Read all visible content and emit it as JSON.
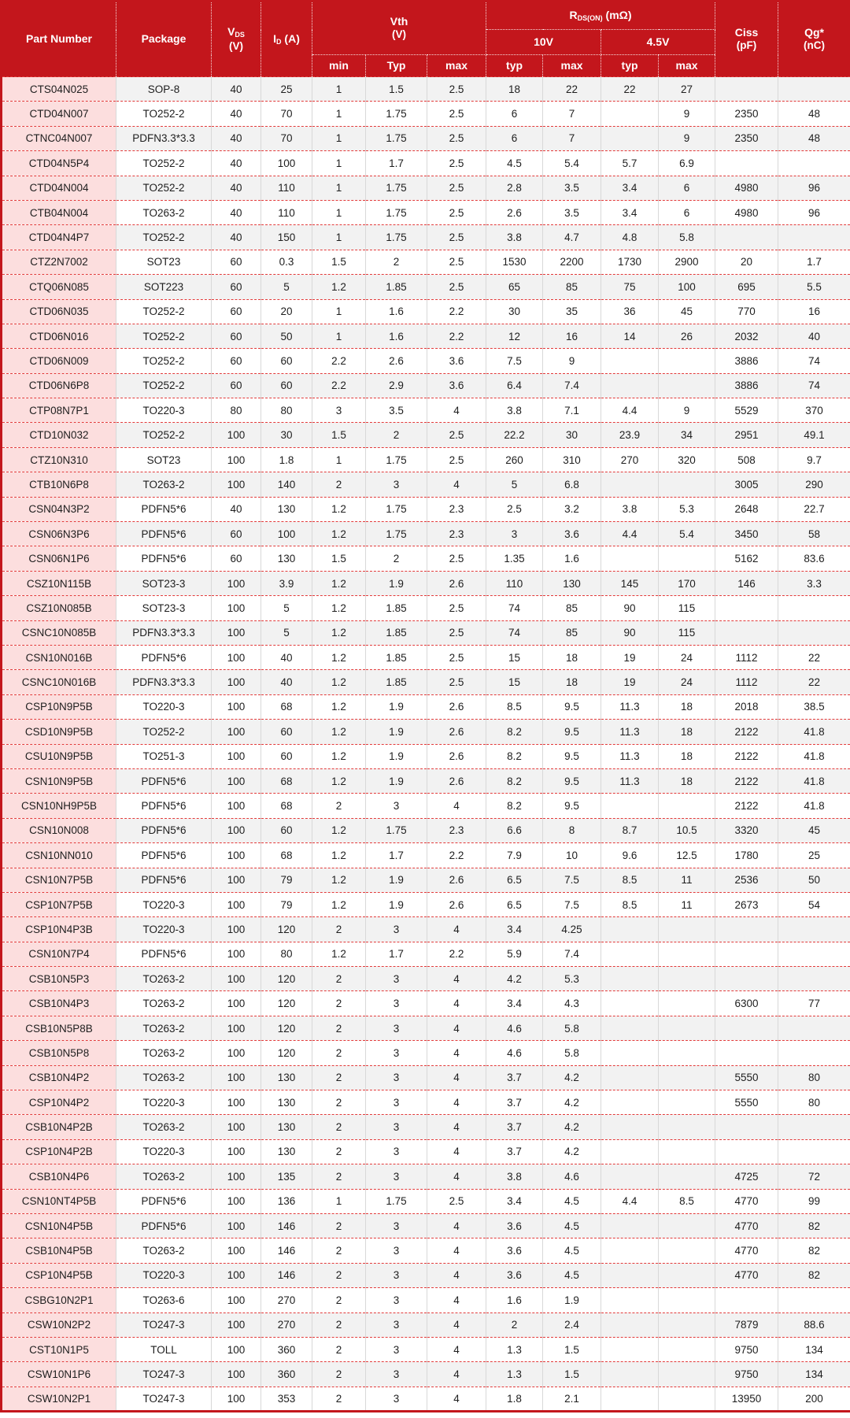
{
  "table": {
    "header": {
      "part_number": "Part Number",
      "package": "Package",
      "vds": {
        "main": "V",
        "sub": "DS",
        "unit": "(V)"
      },
      "id": {
        "main": "I",
        "sub": "D",
        "unit": "(A)"
      },
      "vth": {
        "title": "Vth",
        "unit": "(V)",
        "min": "min",
        "typ": "Typ",
        "max": "max"
      },
      "rdson": {
        "main": "R",
        "sub": "DS(ON)",
        "unit": "(mΩ)",
        "v10": "10V",
        "v45": "4.5V",
        "typ": "typ",
        "max": "max"
      },
      "ciss": {
        "title": "Ciss",
        "unit": "(pF)"
      },
      "qg": {
        "title": "Qg*",
        "unit": "(nC)"
      }
    },
    "rows": [
      [
        "CTS04N025",
        "SOP-8",
        "40",
        "25",
        "1",
        "1.5",
        "2.5",
        "18",
        "22",
        "22",
        "27",
        "",
        ""
      ],
      [
        "CTD04N007",
        "TO252-2",
        "40",
        "70",
        "1",
        "1.75",
        "2.5",
        "6",
        "7",
        "",
        "9",
        "2350",
        "48"
      ],
      [
        "CTNC04N007",
        "PDFN3.3*3.3",
        "40",
        "70",
        "1",
        "1.75",
        "2.5",
        "6",
        "7",
        "",
        "9",
        "2350",
        "48"
      ],
      [
        "CTD04N5P4",
        "TO252-2",
        "40",
        "100",
        "1",
        "1.7",
        "2.5",
        "4.5",
        "5.4",
        "5.7",
        "6.9",
        "",
        ""
      ],
      [
        "CTD04N004",
        "TO252-2",
        "40",
        "110",
        "1",
        "1.75",
        "2.5",
        "2.8",
        "3.5",
        "3.4",
        "6",
        "4980",
        "96"
      ],
      [
        "CTB04N004",
        "TO263-2",
        "40",
        "110",
        "1",
        "1.75",
        "2.5",
        "2.6",
        "3.5",
        "3.4",
        "6",
        "4980",
        "96"
      ],
      [
        "CTD04N4P7",
        "TO252-2",
        "40",
        "150",
        "1",
        "1.75",
        "2.5",
        "3.8",
        "4.7",
        "4.8",
        "5.8",
        "",
        ""
      ],
      [
        "CTZ2N7002",
        "SOT23",
        "60",
        "0.3",
        "1.5",
        "2",
        "2.5",
        "1530",
        "2200",
        "1730",
        "2900",
        "20",
        "1.7"
      ],
      [
        "CTQ06N085",
        "SOT223",
        "60",
        "5",
        "1.2",
        "1.85",
        "2.5",
        "65",
        "85",
        "75",
        "100",
        "695",
        "5.5"
      ],
      [
        "CTD06N035",
        "TO252-2",
        "60",
        "20",
        "1",
        "1.6",
        "2.2",
        "30",
        "35",
        "36",
        "45",
        "770",
        "16"
      ],
      [
        "CTD06N016",
        "TO252-2",
        "60",
        "50",
        "1",
        "1.6",
        "2.2",
        "12",
        "16",
        "14",
        "26",
        "2032",
        "40"
      ],
      [
        "CTD06N009",
        "TO252-2",
        "60",
        "60",
        "2.2",
        "2.6",
        "3.6",
        "7.5",
        "9",
        "",
        "",
        "3886",
        "74"
      ],
      [
        "CTD06N6P8",
        "TO252-2",
        "60",
        "60",
        "2.2",
        "2.9",
        "3.6",
        "6.4",
        "7.4",
        "",
        "",
        "3886",
        "74"
      ],
      [
        "CTP08N7P1",
        "TO220-3",
        "80",
        "80",
        "3",
        "3.5",
        "4",
        "3.8",
        "7.1",
        "4.4",
        "9",
        "5529",
        "370"
      ],
      [
        "CTD10N032",
        "TO252-2",
        "100",
        "30",
        "1.5",
        "2",
        "2.5",
        "22.2",
        "30",
        "23.9",
        "34",
        "2951",
        "49.1"
      ],
      [
        "CTZ10N310",
        "SOT23",
        "100",
        "1.8",
        "1",
        "1.75",
        "2.5",
        "260",
        "310",
        "270",
        "320",
        "508",
        "9.7"
      ],
      [
        "CTB10N6P8",
        "TO263-2",
        "100",
        "140",
        "2",
        "3",
        "4",
        "5",
        "6.8",
        "",
        "",
        "3005",
        "290"
      ],
      [
        "CSN04N3P2",
        "PDFN5*6",
        "40",
        "130",
        "1.2",
        "1.75",
        "2.3",
        "2.5",
        "3.2",
        "3.8",
        "5.3",
        "2648",
        "22.7"
      ],
      [
        "CSN06N3P6",
        "PDFN5*6",
        "60",
        "100",
        "1.2",
        "1.75",
        "2.3",
        "3",
        "3.6",
        "4.4",
        "5.4",
        "3450",
        "58"
      ],
      [
        "CSN06N1P6",
        "PDFN5*6",
        "60",
        "130",
        "1.5",
        "2",
        "2.5",
        "1.35",
        "1.6",
        "",
        "",
        "5162",
        "83.6"
      ],
      [
        "CSZ10N115B",
        "SOT23-3",
        "100",
        "3.9",
        "1.2",
        "1.9",
        "2.6",
        "110",
        "130",
        "145",
        "170",
        "146",
        "3.3"
      ],
      [
        "CSZ10N085B",
        "SOT23-3",
        "100",
        "5",
        "1.2",
        "1.85",
        "2.5",
        "74",
        "85",
        "90",
        "115",
        "",
        ""
      ],
      [
        "CSNC10N085B",
        "PDFN3.3*3.3",
        "100",
        "5",
        "1.2",
        "1.85",
        "2.5",
        "74",
        "85",
        "90",
        "115",
        "",
        ""
      ],
      [
        "CSN10N016B",
        "PDFN5*6",
        "100",
        "40",
        "1.2",
        "1.85",
        "2.5",
        "15",
        "18",
        "19",
        "24",
        "1112",
        "22"
      ],
      [
        "CSNC10N016B",
        "PDFN3.3*3.3",
        "100",
        "40",
        "1.2",
        "1.85",
        "2.5",
        "15",
        "18",
        "19",
        "24",
        "1112",
        "22"
      ],
      [
        "CSP10N9P5B",
        "TO220-3",
        "100",
        "68",
        "1.2",
        "1.9",
        "2.6",
        "8.5",
        "9.5",
        "11.3",
        "18",
        "2018",
        "38.5"
      ],
      [
        "CSD10N9P5B",
        "TO252-2",
        "100",
        "60",
        "1.2",
        "1.9",
        "2.6",
        "8.2",
        "9.5",
        "11.3",
        "18",
        "2122",
        "41.8"
      ],
      [
        "CSU10N9P5B",
        "TO251-3",
        "100",
        "60",
        "1.2",
        "1.9",
        "2.6",
        "8.2",
        "9.5",
        "11.3",
        "18",
        "2122",
        "41.8"
      ],
      [
        "CSN10N9P5B",
        "PDFN5*6",
        "100",
        "68",
        "1.2",
        "1.9",
        "2.6",
        "8.2",
        "9.5",
        "11.3",
        "18",
        "2122",
        "41.8"
      ],
      [
        "CSN10NH9P5B",
        "PDFN5*6",
        "100",
        "68",
        "2",
        "3",
        "4",
        "8.2",
        "9.5",
        "",
        "",
        "2122",
        "41.8"
      ],
      [
        "CSN10N008",
        "PDFN5*6",
        "100",
        "60",
        "1.2",
        "1.75",
        "2.3",
        "6.6",
        "8",
        "8.7",
        "10.5",
        "3320",
        "45"
      ],
      [
        "CSN10NN010",
        "PDFN5*6",
        "100",
        "68",
        "1.2",
        "1.7",
        "2.2",
        "7.9",
        "10",
        "9.6",
        "12.5",
        "1780",
        "25"
      ],
      [
        "CSN10N7P5B",
        "PDFN5*6",
        "100",
        "79",
        "1.2",
        "1.9",
        "2.6",
        "6.5",
        "7.5",
        "8.5",
        "11",
        "2536",
        "50"
      ],
      [
        "CSP10N7P5B",
        "TO220-3",
        "100",
        "79",
        "1.2",
        "1.9",
        "2.6",
        "6.5",
        "7.5",
        "8.5",
        "11",
        "2673",
        "54"
      ],
      [
        "CSP10N4P3B",
        "TO220-3",
        "100",
        "120",
        "2",
        "3",
        "4",
        "3.4",
        "4.25",
        "",
        "",
        "",
        ""
      ],
      [
        "CSN10N7P4",
        "PDFN5*6",
        "100",
        "80",
        "1.2",
        "1.7",
        "2.2",
        "5.9",
        "7.4",
        "",
        "",
        "",
        ""
      ],
      [
        "CSB10N5P3",
        "TO263-2",
        "100",
        "120",
        "2",
        "3",
        "4",
        "4.2",
        "5.3",
        "",
        "",
        "",
        ""
      ],
      [
        "CSB10N4P3",
        "TO263-2",
        "100",
        "120",
        "2",
        "3",
        "4",
        "3.4",
        "4.3",
        "",
        "",
        "6300",
        "77"
      ],
      [
        "CSB10N5P8B",
        "TO263-2",
        "100",
        "120",
        "2",
        "3",
        "4",
        "4.6",
        "5.8",
        "",
        "",
        "",
        ""
      ],
      [
        "CSB10N5P8",
        "TO263-2",
        "100",
        "120",
        "2",
        "3",
        "4",
        "4.6",
        "5.8",
        "",
        "",
        "",
        ""
      ],
      [
        "CSB10N4P2",
        "TO263-2",
        "100",
        "130",
        "2",
        "3",
        "4",
        "3.7",
        "4.2",
        "",
        "",
        "5550",
        "80"
      ],
      [
        "CSP10N4P2",
        "TO220-3",
        "100",
        "130",
        "2",
        "3",
        "4",
        "3.7",
        "4.2",
        "",
        "",
        "5550",
        "80"
      ],
      [
        "CSB10N4P2B",
        "TO263-2",
        "100",
        "130",
        "2",
        "3",
        "4",
        "3.7",
        "4.2",
        "",
        "",
        "",
        ""
      ],
      [
        "CSP10N4P2B",
        "TO220-3",
        "100",
        "130",
        "2",
        "3",
        "4",
        "3.7",
        "4.2",
        "",
        "",
        "",
        ""
      ],
      [
        "CSB10N4P6",
        "TO263-2",
        "100",
        "135",
        "2",
        "3",
        "4",
        "3.8",
        "4.6",
        "",
        "",
        "4725",
        "72"
      ],
      [
        "CSN10NT4P5B",
        "PDFN5*6",
        "100",
        "136",
        "1",
        "1.75",
        "2.5",
        "3.4",
        "4.5",
        "4.4",
        "8.5",
        "4770",
        "99"
      ],
      [
        "CSN10N4P5B",
        "PDFN5*6",
        "100",
        "146",
        "2",
        "3",
        "4",
        "3.6",
        "4.5",
        "",
        "",
        "4770",
        "82"
      ],
      [
        "CSB10N4P5B",
        "TO263-2",
        "100",
        "146",
        "2",
        "3",
        "4",
        "3.6",
        "4.5",
        "",
        "",
        "4770",
        "82"
      ],
      [
        "CSP10N4P5B",
        "TO220-3",
        "100",
        "146",
        "2",
        "3",
        "4",
        "3.6",
        "4.5",
        "",
        "",
        "4770",
        "82"
      ],
      [
        "CSBG10N2P1",
        "TO263-6",
        "100",
        "270",
        "2",
        "3",
        "4",
        "1.6",
        "1.9",
        "",
        "",
        "",
        ""
      ],
      [
        "CSW10N2P2",
        "TO247-3",
        "100",
        "270",
        "2",
        "3",
        "4",
        "2",
        "2.4",
        "",
        "",
        "7879",
        "88.6"
      ],
      [
        "CST10N1P5",
        "TOLL",
        "100",
        "360",
        "2",
        "3",
        "4",
        "1.3",
        "1.5",
        "",
        "",
        "9750",
        "134"
      ],
      [
        "CSW10N1P6",
        "TO247-3",
        "100",
        "360",
        "2",
        "3",
        "4",
        "1.3",
        "1.5",
        "",
        "",
        "9750",
        "134"
      ],
      [
        "CSW10N2P1",
        "TO247-3",
        "100",
        "353",
        "2",
        "3",
        "4",
        "1.8",
        "2.1",
        "",
        "",
        "13950",
        "200"
      ]
    ],
    "colors": {
      "header_bg": "#c3161c",
      "part_column_bg": "#fcdede",
      "row_stripe_gray": "#f2f2f2",
      "row_stripe_white": "#ffffff",
      "row_divider_dash": "#e23b3b",
      "outer_border": "#c3161c"
    }
  }
}
